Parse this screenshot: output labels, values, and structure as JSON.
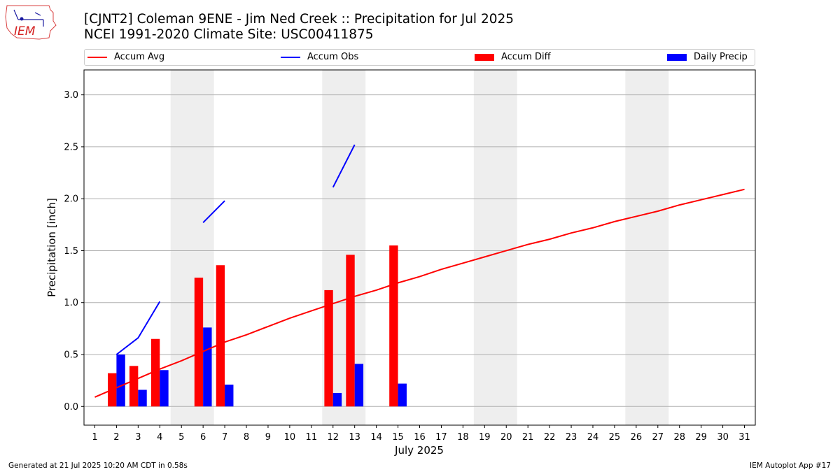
{
  "logo": {
    "text": "IEM"
  },
  "header": {
    "title_line1": "[CJNT2] Coleman 9ENE - Jim Ned Creek :: Precipitation for Jul 2025",
    "title_line2": "NCEI 1991-2020 Climate Site: USC00411875"
  },
  "footer": {
    "generated": "Generated at 21 Jul 2025 10:20 AM CDT in 0.58s",
    "app": "IEM Autoplot App #17"
  },
  "colors": {
    "accum_avg": "#ff0000",
    "accum_obs": "#0000ff",
    "accum_diff": "#ff0000",
    "daily_precip": "#0000ff",
    "weekend_shade": "#eeeeee",
    "grid": "#b0b0b0"
  },
  "chart_data": {
    "type": "bar",
    "title": "[CJNT2] Coleman 9ENE - Jim Ned Creek :: Precipitation for Jul 2025",
    "subtitle": "NCEI 1991-2020 Climate Site: USC00411875",
    "xlabel": "July 2025",
    "ylabel": "Precipitation [inch]",
    "ylim": [
      -0.18,
      3.24
    ],
    "xlim": [
      0.5,
      31.5
    ],
    "grid": "horizontal",
    "legend_placement": "top",
    "x_ticks": [
      1,
      2,
      3,
      4,
      5,
      6,
      7,
      8,
      9,
      10,
      11,
      12,
      13,
      14,
      15,
      16,
      17,
      18,
      19,
      20,
      21,
      22,
      23,
      24,
      25,
      26,
      27,
      28,
      29,
      30,
      31
    ],
    "y_ticks": [
      0.0,
      0.5,
      1.0,
      1.5,
      2.0,
      2.5,
      3.0
    ],
    "y_tick_labels": [
      "0.0",
      "0.5",
      "1.0",
      "1.5",
      "2.0",
      "2.5",
      "3.0"
    ],
    "weekend_shading": [
      [
        5,
        6
      ],
      [
        12,
        13
      ],
      [
        19,
        20
      ],
      [
        26,
        27
      ]
    ],
    "series": [
      {
        "name": "Accum Avg",
        "kind": "line",
        "x": [
          1,
          2,
          3,
          4,
          5,
          6,
          7,
          8,
          9,
          10,
          11,
          12,
          13,
          14,
          15,
          16,
          17,
          18,
          19,
          20,
          21,
          22,
          23,
          24,
          25,
          26,
          27,
          28,
          29,
          30,
          31
        ],
        "values": [
          0.09,
          0.18,
          0.27,
          0.36,
          0.44,
          0.53,
          0.62,
          0.69,
          0.77,
          0.85,
          0.92,
          0.99,
          1.06,
          1.12,
          1.19,
          1.25,
          1.32,
          1.38,
          1.44,
          1.5,
          1.56,
          1.61,
          1.67,
          1.72,
          1.78,
          1.83,
          1.88,
          1.94,
          1.99,
          2.04,
          2.09
        ]
      },
      {
        "name": "Accum Obs",
        "kind": "line",
        "segments": [
          {
            "x": [
              2,
              3,
              4
            ],
            "values": [
              0.5,
              0.66,
              1.01
            ]
          },
          {
            "x": [
              6,
              7
            ],
            "values": [
              1.77,
              1.98
            ]
          },
          {
            "x": [
              12,
              13
            ],
            "values": [
              2.11,
              2.52
            ]
          }
        ]
      },
      {
        "name": "Accum Diff",
        "kind": "bar",
        "x": [
          2,
          3,
          4,
          6,
          7,
          12,
          13,
          15
        ],
        "values": [
          0.32,
          0.39,
          0.65,
          1.24,
          1.36,
          1.12,
          1.46,
          1.55
        ]
      },
      {
        "name": "Daily Precip",
        "kind": "bar",
        "x": [
          2,
          3,
          4,
          6,
          7,
          12,
          13,
          15
        ],
        "values": [
          0.5,
          0.16,
          0.35,
          0.76,
          0.21,
          0.13,
          0.41,
          0.22
        ]
      }
    ]
  }
}
